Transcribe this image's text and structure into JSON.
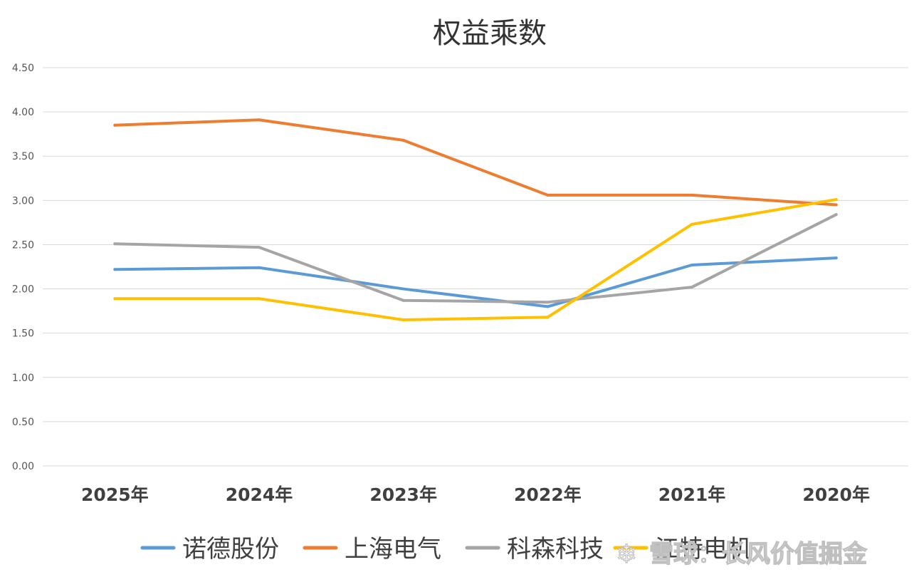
{
  "chart_data": {
    "type": "line",
    "title": "权益乘数",
    "categories": [
      "2025年",
      "2024年",
      "2023年",
      "2022年",
      "2021年",
      "2020年"
    ],
    "ylim": [
      0,
      4.5
    ],
    "yticks": [
      "0.00",
      "0.50",
      "1.00",
      "1.50",
      "2.00",
      "2.50",
      "3.00",
      "3.50",
      "4.00",
      "4.50"
    ],
    "grid": true,
    "legend_position": "bottom",
    "series": [
      {
        "name": "诺德股份",
        "color": "#5b9bd5",
        "values": [
          2.22,
          2.24,
          2.0,
          1.8,
          2.27,
          2.35
        ]
      },
      {
        "name": "上海电气",
        "color": "#ed7d31",
        "values": [
          3.85,
          3.91,
          3.68,
          3.06,
          3.06,
          2.95
        ]
      },
      {
        "name": "科森科技",
        "color": "#a5a5a5",
        "values": [
          2.51,
          2.47,
          1.87,
          1.85,
          2.02,
          2.84
        ]
      },
      {
        "name": "江特电机",
        "color": "#ffc000",
        "values": [
          1.89,
          1.89,
          1.65,
          1.68,
          2.73,
          3.01
        ]
      }
    ]
  },
  "watermark": "雪球：长风价值掘金"
}
